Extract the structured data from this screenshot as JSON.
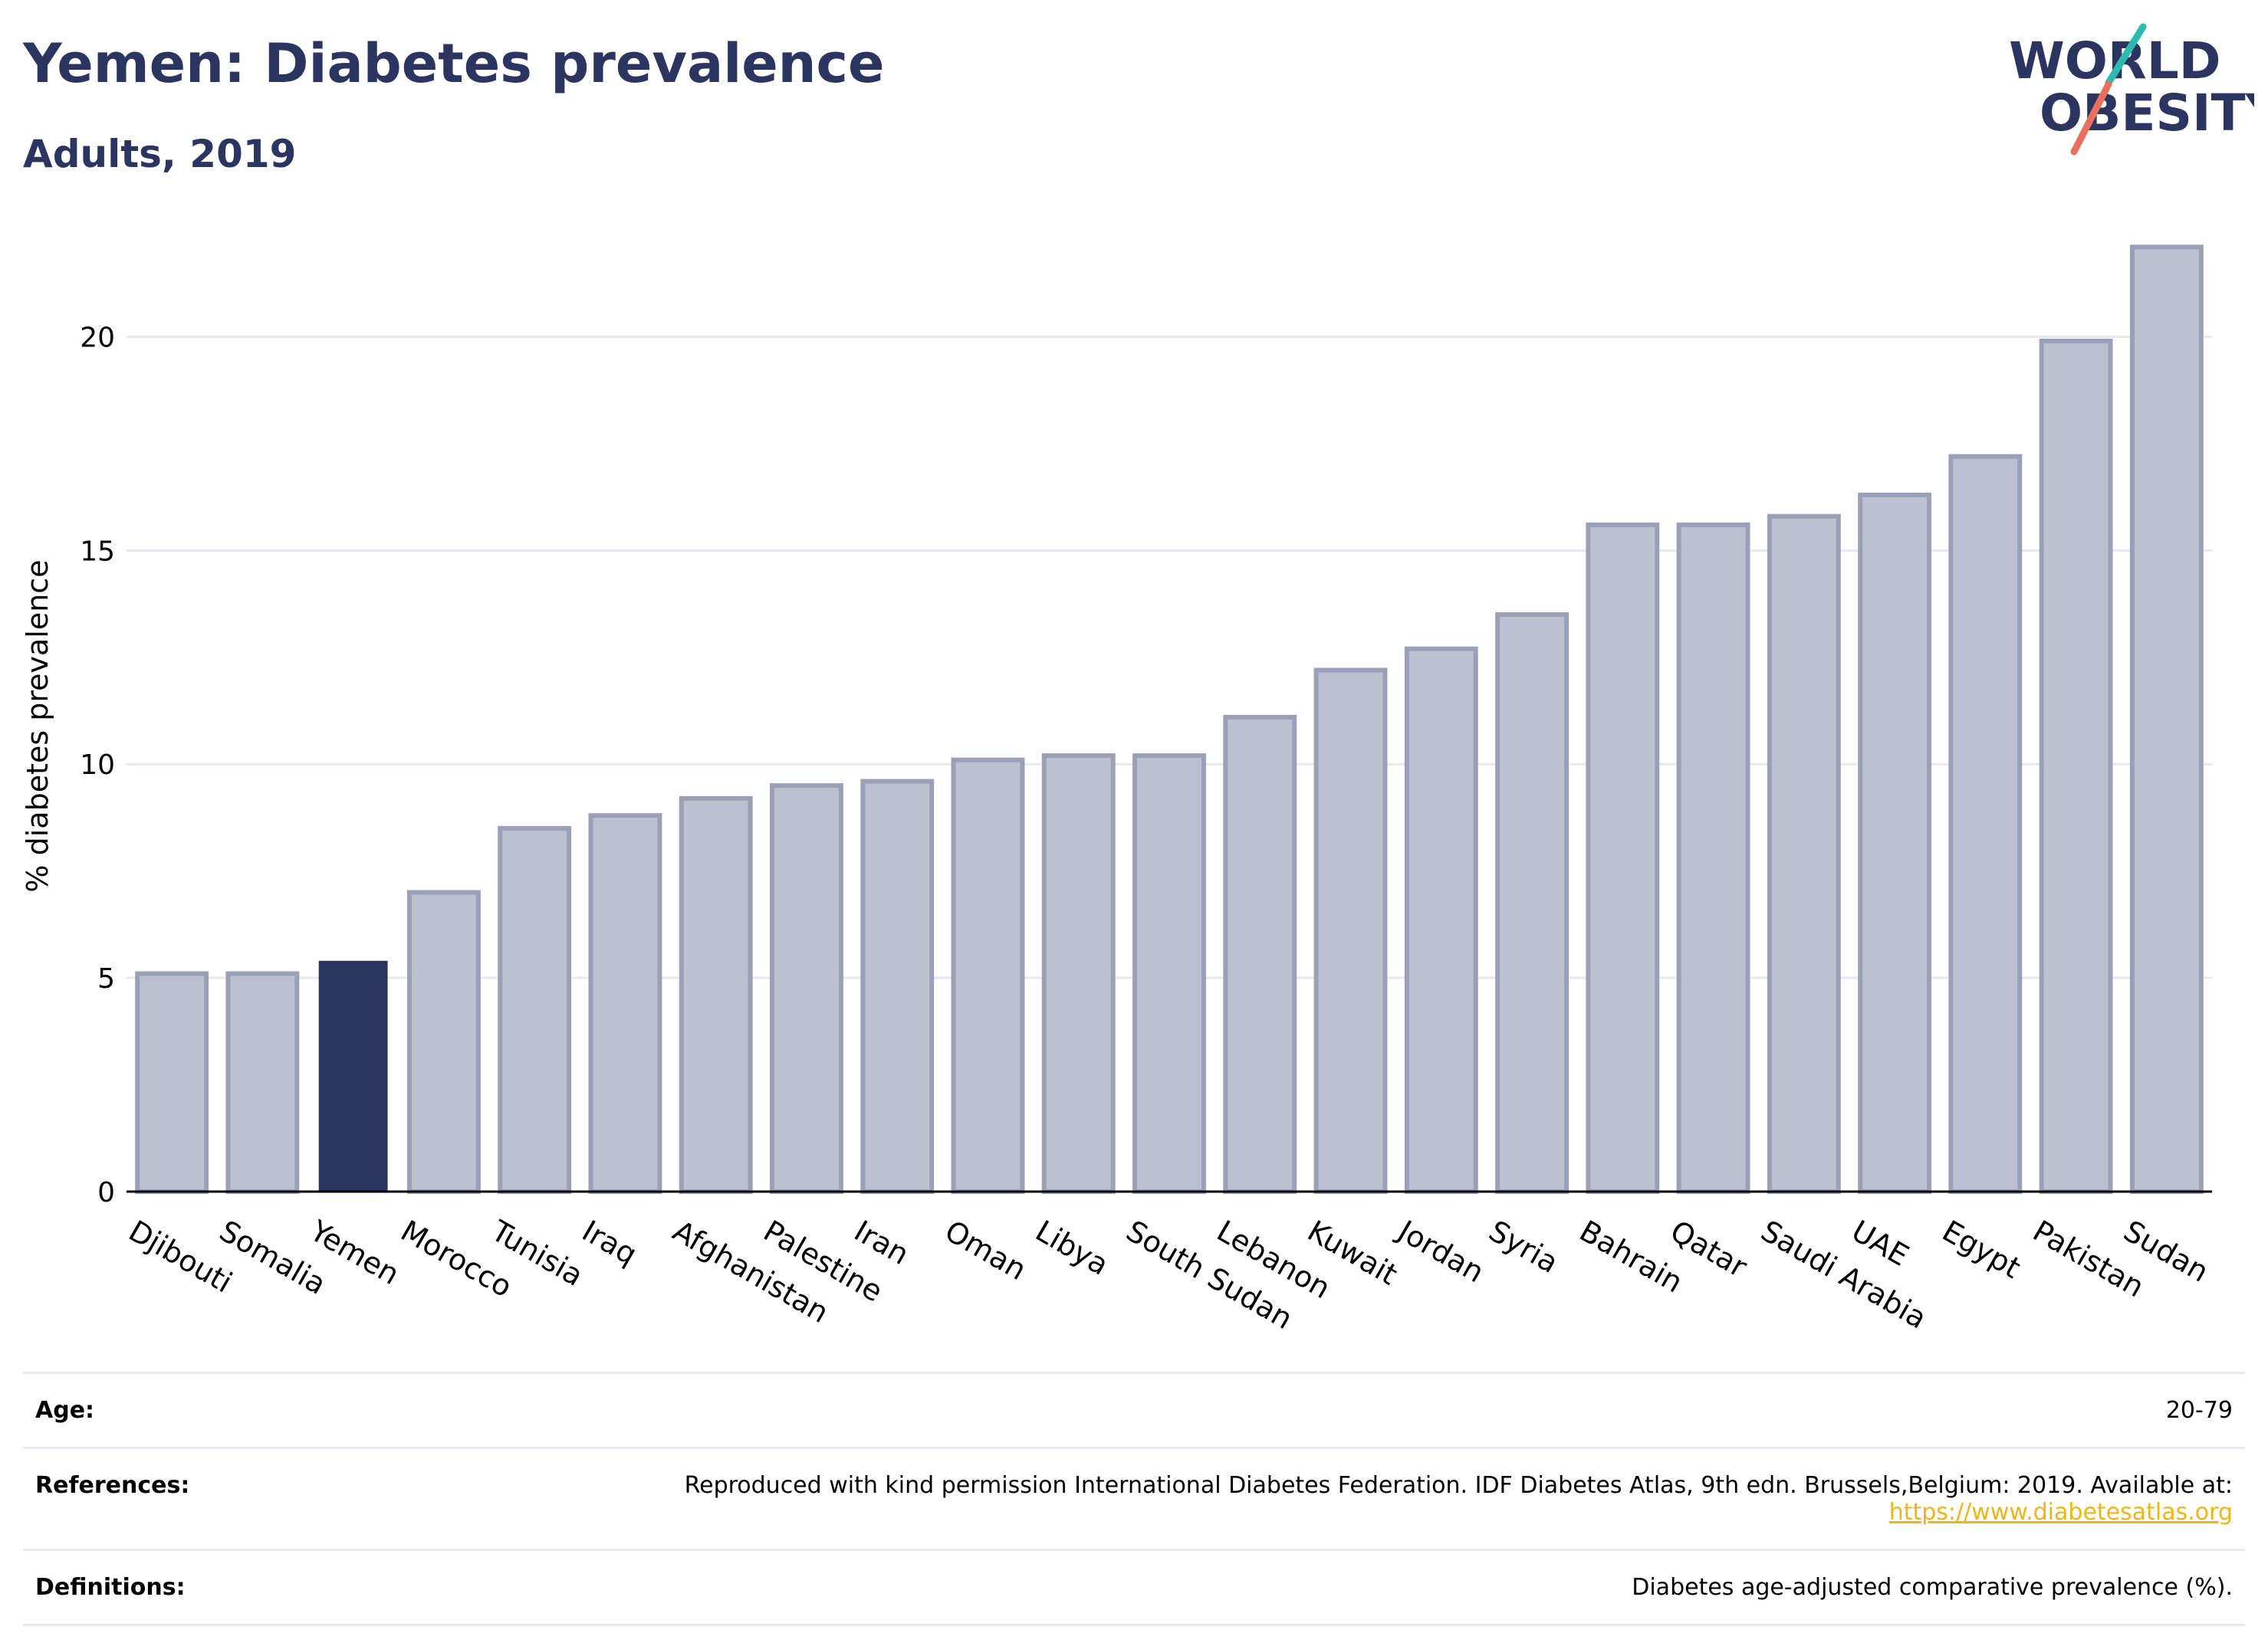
{
  "header": {
    "title": "Yemen: Diabetes prevalence",
    "subtitle": "Adults, 2019",
    "logo_line1": "WORLD",
    "logo_line2": "OBESITY"
  },
  "colors": {
    "highlight": "#2b3560",
    "bar_fill": "#bcc0cf",
    "bar_stroke": "#9aa0b8",
    "logo_teal": "#2bbbb0",
    "logo_coral": "#e8705e",
    "link": "#f0b416"
  },
  "chart_data": {
    "type": "bar",
    "ylabel": "% diabetes prevalence",
    "xlabel": "",
    "ylim": [
      0,
      22.5
    ],
    "yticks": [
      0,
      5,
      10,
      15,
      20
    ],
    "grid": true,
    "highlight_category": "Yemen",
    "categories": [
      "Djibouti",
      "Somalia",
      "Yemen",
      "Morocco",
      "Tunisia",
      "Iraq",
      "Afghanistan",
      "Palestine",
      "Iran",
      "Oman",
      "Libya",
      "South Sudan",
      "Lebanon",
      "Kuwait",
      "Jordan",
      "Syria",
      "Bahrain",
      "Qatar",
      "Saudi Arabia",
      "UAE",
      "Egypt",
      "Pakistan",
      "Sudan"
    ],
    "values": [
      5.1,
      5.1,
      5.4,
      7.0,
      8.5,
      8.8,
      9.2,
      9.5,
      9.6,
      10.1,
      10.2,
      10.2,
      11.1,
      12.2,
      12.7,
      13.5,
      15.6,
      15.6,
      15.8,
      16.3,
      17.2,
      19.9,
      22.1
    ]
  },
  "info": {
    "age_label": "Age:",
    "age_value": "20-79",
    "references_label": "References:",
    "references_text": "Reproduced with kind permission International Diabetes Federation. IDF Diabetes Atlas, 9th edn. Brussels,Belgium: 2019. Available at:",
    "references_link": "https://www.diabetesatlas.org",
    "definitions_label": "Definitions:",
    "definitions_value": "Diabetes age-adjusted comparative prevalence (%)."
  }
}
